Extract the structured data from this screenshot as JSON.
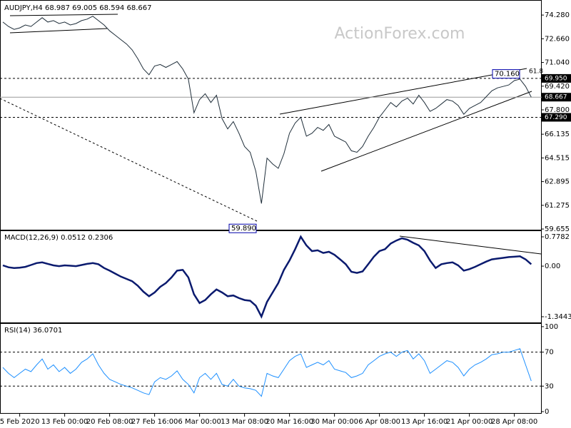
{
  "chart_data": [
    {
      "type": "line",
      "title": "AUDJPY,H4  68.987 69.005 68.594 68.667",
      "watermark": "ActionForex.com",
      "color": "#1f2e3a",
      "values": [
        73.8,
        73.5,
        73.3,
        73.4,
        73.6,
        73.5,
        73.8,
        74.1,
        73.8,
        73.9,
        73.7,
        73.8,
        73.6,
        73.7,
        73.9,
        74.0,
        74.2,
        73.9,
        73.6,
        73.2,
        72.9,
        72.6,
        72.3,
        71.9,
        71.3,
        70.6,
        70.2,
        70.8,
        70.9,
        70.7,
        70.9,
        71.1,
        70.6,
        69.9,
        67.6,
        68.5,
        68.9,
        68.3,
        68.8,
        67.2,
        66.5,
        67.0,
        66.2,
        65.3,
        64.9,
        63.6,
        61.4,
        64.5,
        64.1,
        63.8,
        64.8,
        66.2,
        66.9,
        67.3,
        66.0,
        66.2,
        66.6,
        66.4,
        66.8,
        66.0,
        65.8,
        65.6,
        65.0,
        64.9,
        65.3,
        66.0,
        66.6,
        67.3,
        67.8,
        68.3,
        68.0,
        68.4,
        68.6,
        68.2,
        68.8,
        68.3,
        67.7,
        67.9,
        68.2,
        68.5,
        68.4,
        68.1,
        67.5,
        67.9,
        68.1,
        68.3,
        68.7,
        69.1,
        69.3,
        69.4,
        69.5,
        69.8,
        69.9,
        69.4,
        68.667
      ],
      "ylim": [
        59.56,
        75.26
      ],
      "yticks": [
        {
          "value": 74.28,
          "label": "74.280"
        },
        {
          "value": 72.66,
          "label": "72.660"
        },
        {
          "value": 71.04,
          "label": "71.040"
        },
        {
          "value": 69.42,
          "label": "69.420"
        },
        {
          "value": 67.8,
          "label": "67.800"
        },
        {
          "value": 66.135,
          "label": "66.135"
        },
        {
          "value": 64.515,
          "label": "64.515"
        },
        {
          "value": 62.895,
          "label": "62.895"
        },
        {
          "value": 61.275,
          "label": "61.275"
        },
        {
          "value": 59.655,
          "label": "59.655"
        }
      ],
      "levels": [
        {
          "value": 69.95,
          "label": "69.950"
        },
        {
          "value": 68.667,
          "label": "68.667"
        },
        {
          "value": 67.29,
          "label": "67.290"
        }
      ],
      "annotations": [
        {
          "value": 70.16,
          "label": "70.160"
        },
        {
          "value": 59.89,
          "label": "59.890"
        }
      ],
      "fib_label": "61.8"
    },
    {
      "type": "line",
      "title": "MACD(12,26,9) 0.0512 0.2306",
      "color": "#0a1a6e",
      "values": [
        0.02,
        -0.03,
        -0.05,
        -0.04,
        -0.02,
        0.03,
        0.08,
        0.1,
        0.06,
        0.02,
        0.0,
        0.02,
        0.01,
        0.0,
        0.03,
        0.06,
        0.08,
        0.05,
        -0.05,
        -0.12,
        -0.2,
        -0.28,
        -0.34,
        -0.4,
        -0.52,
        -0.68,
        -0.8,
        -0.7,
        -0.55,
        -0.45,
        -0.3,
        -0.12,
        -0.1,
        -0.3,
        -0.75,
        -0.98,
        -0.9,
        -0.75,
        -0.62,
        -0.7,
        -0.8,
        -0.78,
        -0.85,
        -0.9,
        -0.92,
        -1.05,
        -1.34,
        -0.95,
        -0.7,
        -0.45,
        -0.1,
        0.15,
        0.45,
        0.78,
        0.55,
        0.4,
        0.42,
        0.35,
        0.38,
        0.3,
        0.18,
        0.05,
        -0.15,
        -0.18,
        -0.14,
        0.05,
        0.25,
        0.4,
        0.45,
        0.6,
        0.68,
        0.74,
        0.7,
        0.62,
        0.55,
        0.4,
        0.15,
        -0.05,
        0.05,
        0.08,
        0.1,
        0.02,
        -0.12,
        -0.08,
        -0.02,
        0.05,
        0.12,
        0.18,
        0.2,
        0.22,
        0.24,
        0.25,
        0.26,
        0.18,
        0.05
      ],
      "ylim": [
        -1.515,
        0.93
      ],
      "yticks": [
        0.7782,
        {
          "value": 0,
          "label": "0.00"
        },
        -1.3443
      ]
    },
    {
      "type": "line",
      "title": "RSI(14) 36.0701",
      "color": "#1e90ff",
      "values": [
        52,
        45,
        40,
        45,
        50,
        47,
        55,
        62,
        50,
        55,
        47,
        52,
        45,
        50,
        58,
        62,
        68,
        55,
        45,
        38,
        35,
        32,
        30,
        28,
        25,
        22,
        20,
        35,
        40,
        38,
        42,
        48,
        38,
        32,
        22,
        40,
        45,
        38,
        45,
        32,
        30,
        38,
        30,
        28,
        27,
        25,
        18,
        45,
        42,
        40,
        50,
        60,
        65,
        68,
        52,
        55,
        58,
        55,
        60,
        50,
        48,
        46,
        40,
        42,
        45,
        55,
        60,
        65,
        68,
        70,
        65,
        70,
        72,
        62,
        68,
        60,
        45,
        50,
        55,
        60,
        58,
        52,
        42,
        50,
        55,
        58,
        62,
        67,
        68,
        70,
        70,
        72,
        74,
        55,
        36
      ],
      "ylim": [
        -2.5,
        103.3
      ],
      "yticks": [
        100,
        70,
        30,
        0
      ],
      "levels": [
        70,
        30
      ],
      "categories": [
        null,
        null,
        null,
        "5 Feb 2020",
        null,
        null,
        null,
        null,
        null,
        null,
        null,
        "13 Feb 00:00",
        null,
        null,
        null,
        null,
        null,
        null,
        null,
        "20 Feb 08:00",
        null,
        null,
        null,
        null,
        null,
        null,
        null,
        "27 Feb 16:00",
        null,
        null,
        null,
        null,
        null,
        null,
        null,
        "6 Mar 00:00",
        null,
        null,
        null,
        null,
        null,
        null,
        null,
        "13 Mar 08:00",
        null,
        null,
        null,
        null,
        null,
        null,
        null,
        "20 Mar 16:00",
        null,
        null,
        null,
        null,
        null,
        null,
        null,
        "30 Mar 00:00",
        null,
        null,
        null,
        null,
        null,
        null,
        null,
        "6 Apr 08:00",
        null,
        null,
        null,
        null,
        null,
        null,
        null,
        "13 Apr 16:00",
        null,
        null,
        null,
        null,
        null,
        null,
        null,
        "21 Apr 00:00",
        null,
        null,
        null,
        null,
        null,
        null,
        null,
        "28 Apr 08:00",
        null,
        null,
        null
      ]
    }
  ]
}
